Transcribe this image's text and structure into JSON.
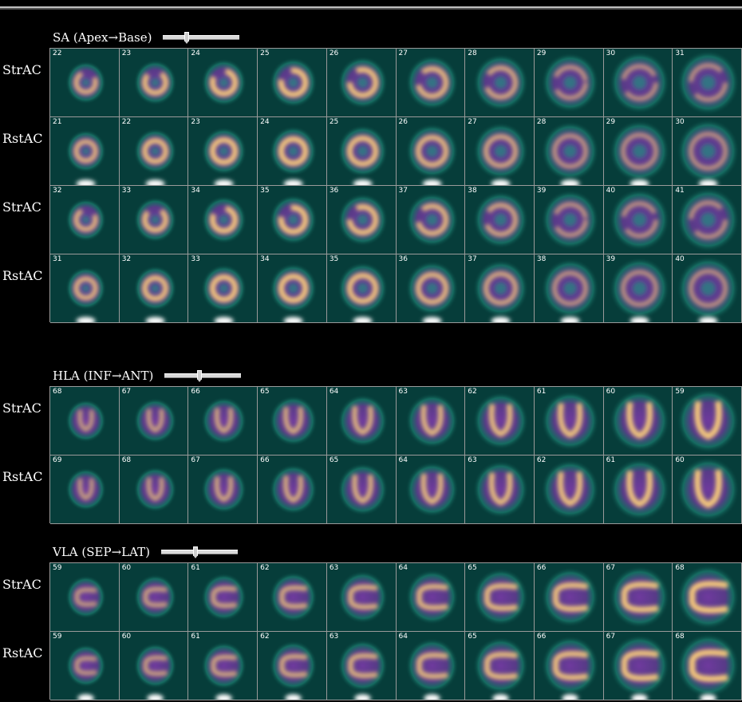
{
  "sections": [
    {
      "id": "sa",
      "title": "SA (Apex→Base)",
      "slider_position": 0.3,
      "rows": [
        {
          "label": "StrAC",
          "slices": [
            "22",
            "23",
            "24",
            "25",
            "26",
            "27",
            "28",
            "29",
            "30",
            "31"
          ]
        },
        {
          "label": "RstAC",
          "slices": [
            "21",
            "22",
            "23",
            "24",
            "25",
            "26",
            "27",
            "28",
            "29",
            "30"
          ]
        },
        {
          "label": "StrAC",
          "slices": [
            "32",
            "33",
            "34",
            "35",
            "36",
            "37",
            "38",
            "39",
            "40",
            "41"
          ]
        },
        {
          "label": "RstAC",
          "slices": [
            "31",
            "32",
            "33",
            "34",
            "35",
            "36",
            "37",
            "38",
            "39",
            "40"
          ]
        }
      ]
    },
    {
      "id": "hla",
      "title": "HLA (INF→ANT)",
      "slider_position": 0.45,
      "rows": [
        {
          "label": "StrAC",
          "slices": [
            "68",
            "67",
            "66",
            "65",
            "64",
            "63",
            "62",
            "61",
            "60",
            "59"
          ]
        },
        {
          "label": "RstAC",
          "slices": [
            "69",
            "68",
            "67",
            "66",
            "65",
            "64",
            "63",
            "62",
            "61",
            "60"
          ]
        }
      ]
    },
    {
      "id": "vla",
      "title": "VLA (SEP→LAT)",
      "slider_position": 0.45,
      "rows": [
        {
          "label": "StrAC",
          "slices": [
            "59",
            "60",
            "61",
            "62",
            "63",
            "64",
            "65",
            "66",
            "67",
            "68"
          ]
        },
        {
          "label": "RstAC",
          "slices": [
            "59",
            "60",
            "61",
            "62",
            "63",
            "64",
            "65",
            "66",
            "67",
            "68"
          ]
        }
      ]
    }
  ],
  "colors": {
    "background": "#000000",
    "tile_background": "#063d3a",
    "grid_line": "#9a9a9a",
    "heat_low": "#1f8a7a",
    "heat_mid": "#7a3aa8",
    "heat_high": "#ffd27a"
  }
}
